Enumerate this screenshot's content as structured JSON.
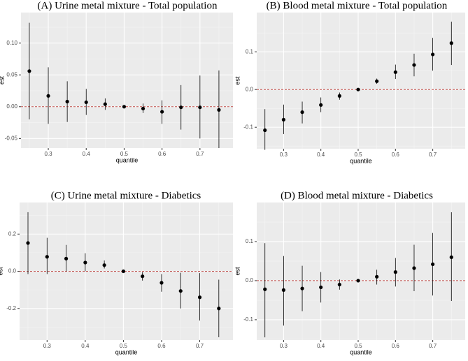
{
  "chart_data": [
    {
      "type": "pointrange",
      "title": "(A) Urine metal mixture - Total population",
      "x_label": "quantile",
      "y_label": "est",
      "x": [
        0.25,
        0.3,
        0.35,
        0.4,
        0.45,
        0.5,
        0.55,
        0.6,
        0.65,
        0.7,
        0.75
      ],
      "values": [
        0.056,
        0.017,
        0.008,
        0.007,
        0.004,
        0,
        -0.003,
        -0.008,
        -0.001,
        -0.001,
        -0.005
      ],
      "lower": [
        -0.02,
        -0.027,
        -0.024,
        -0.013,
        -0.005,
        0,
        -0.01,
        -0.027,
        -0.036,
        -0.05,
        -0.065
      ],
      "upper": [
        0.132,
        0.062,
        0.04,
        0.028,
        0.013,
        0,
        0.005,
        0.01,
        0.034,
        0.049,
        0.057
      ],
      "color": "#000000",
      "refline": 0,
      "refline_color": "#c0504d",
      "xlim": [
        0.228,
        0.787
      ],
      "xticks": [
        0.3,
        0.4,
        0.5,
        0.6,
        0.7
      ],
      "ylim": [
        -0.065,
        0.148
      ],
      "yticks": [
        {
          "value": -0.05,
          "label": "-0.05"
        },
        {
          "value": 0,
          "label": "0.00"
        },
        {
          "value": 0.05,
          "label": "0.05"
        },
        {
          "value": 0.1,
          "label": "0.10"
        }
      ],
      "grid": true
    },
    {
      "type": "pointrange",
      "title": "(B) Blood metal mixture - Total population",
      "x_label": "quantile",
      "y_label": "est",
      "x": [
        0.25,
        0.3,
        0.35,
        0.4,
        0.45,
        0.5,
        0.55,
        0.6,
        0.65,
        0.7,
        0.75
      ],
      "values": [
        -0.108,
        -0.08,
        -0.06,
        -0.041,
        -0.017,
        0,
        0.022,
        0.046,
        0.065,
        0.093,
        0.123
      ],
      "lower": [
        -0.16,
        -0.118,
        -0.09,
        -0.06,
        -0.027,
        0,
        0.015,
        0.028,
        0.035,
        0.05,
        0.065
      ],
      "upper": [
        -0.052,
        -0.04,
        -0.032,
        -0.021,
        -0.008,
        0,
        0.029,
        0.066,
        0.095,
        0.137,
        0.18
      ],
      "color": "#000000",
      "refline": 0,
      "refline_color": "#c0504d",
      "xlim": [
        0.228,
        0.787
      ],
      "xticks": [
        0.3,
        0.4,
        0.5,
        0.6,
        0.7
      ],
      "ylim": [
        -0.157,
        0.204
      ],
      "yticks": [
        -0.1,
        {
          "value": 0,
          "label": "0.0"
        },
        0.1
      ],
      "grid": true
    },
    {
      "type": "pointrange",
      "title": "(C) Urine metal mixture - Diabetics",
      "x_label": "quantile",
      "y_label": "est",
      "x": [
        0.25,
        0.3,
        0.35,
        0.4,
        0.45,
        0.5,
        0.55,
        0.6,
        0.65,
        0.7,
        0.75
      ],
      "values": [
        0.152,
        0.078,
        0.068,
        0.047,
        0.033,
        0,
        -0.027,
        -0.062,
        -0.106,
        -0.14,
        -0.2
      ],
      "lower": [
        -0.015,
        -0.015,
        0,
        0,
        0.015,
        0,
        -0.05,
        -0.11,
        -0.2,
        -0.265,
        -0.355
      ],
      "upper": [
        0.318,
        0.18,
        0.142,
        0.097,
        0.058,
        0,
        -0.005,
        -0.015,
        -0.008,
        -0.01,
        -0.045
      ],
      "color": "#000000",
      "refline": 0,
      "refline_color": "#c0504d",
      "xlim": [
        0.228,
        0.787
      ],
      "xticks": [
        0.3,
        0.4,
        0.5,
        0.6,
        0.7
      ],
      "ylim": [
        -0.37,
        0.37
      ],
      "yticks": [
        -0.2,
        {
          "value": 0,
          "label": "0.0"
        },
        0.2
      ],
      "grid": true
    },
    {
      "type": "pointrange",
      "title": "(D) Blood metal mixture - Diabetics",
      "x_label": "quantile",
      "y_label": "est",
      "x": [
        0.25,
        0.3,
        0.35,
        0.4,
        0.45,
        0.5,
        0.55,
        0.6,
        0.65,
        0.7,
        0.75
      ],
      "values": [
        -0.022,
        -0.024,
        -0.02,
        -0.017,
        -0.01,
        0,
        0.01,
        0.022,
        0.032,
        0.042,
        0.06
      ],
      "lower": [
        -0.145,
        -0.115,
        -0.078,
        -0.056,
        -0.023,
        0,
        -0.01,
        -0.015,
        -0.027,
        -0.038,
        -0.052
      ],
      "upper": [
        0.096,
        0.063,
        0.038,
        0.022,
        0.003,
        0,
        0.028,
        0.058,
        0.092,
        0.122,
        0.175
      ],
      "color": "#000000",
      "refline": 0,
      "refline_color": "#c0504d",
      "xlim": [
        0.228,
        0.787
      ],
      "xticks": [
        0.3,
        0.4,
        0.5,
        0.6,
        0.7
      ],
      "ylim": [
        -0.152,
        0.2
      ],
      "yticks": [
        -0.1,
        {
          "value": 0,
          "label": "0.0"
        },
        0.1
      ],
      "grid": true
    }
  ]
}
